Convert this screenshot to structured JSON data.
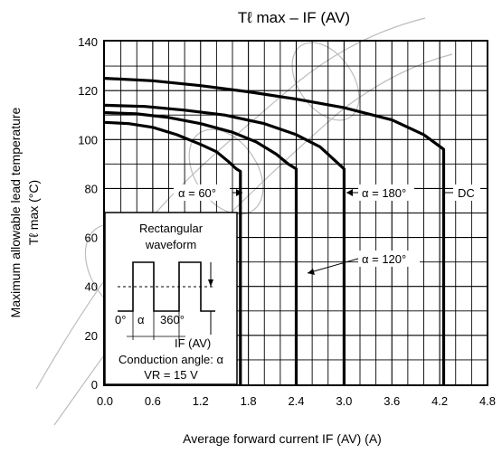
{
  "chart_data": {
    "type": "line",
    "title": "Tℓ max – IF (AV)",
    "xlabel": "Average forward current   IF (AV)   (A)",
    "ylabel_line1": "Maximum allowable lead temperature",
    "ylabel_line2": "Tℓ max    (°C)",
    "xlim": [
      0,
      4.8
    ],
    "ylim": [
      0,
      140
    ],
    "x_ticks": [
      "0.0",
      "0.6",
      "1.2",
      "1.8",
      "2.4",
      "3.0",
      "3.6",
      "4.2",
      "4.8"
    ],
    "y_ticks": [
      "0",
      "20",
      "40",
      "60",
      "80",
      "100",
      "120",
      "140"
    ],
    "grid": true,
    "series": [
      {
        "name": "α = 60°",
        "x": [
          0.0,
          0.3,
          0.6,
          0.9,
          1.2,
          1.4,
          1.55,
          1.65,
          1.7,
          1.7
        ],
        "y": [
          107,
          106.5,
          105,
          102,
          98,
          95,
          91,
          88,
          87,
          0
        ]
      },
      {
        "name": "α = 120°",
        "x": [
          0.0,
          0.4,
          0.8,
          1.2,
          1.6,
          1.9,
          2.15,
          2.3,
          2.4,
          2.4
        ],
        "y": [
          111,
          110.5,
          109,
          106.5,
          103,
          99,
          94,
          90,
          88,
          0
        ]
      },
      {
        "name": "α = 180°",
        "x": [
          0.0,
          0.5,
          1.0,
          1.5,
          2.0,
          2.4,
          2.7,
          2.9,
          3.0,
          3.0
        ],
        "y": [
          114,
          113.5,
          112,
          110,
          106.5,
          102,
          97,
          91,
          88,
          0
        ]
      },
      {
        "name": "DC",
        "x": [
          0.0,
          0.6,
          1.2,
          1.8,
          2.4,
          3.0,
          3.6,
          4.0,
          4.25,
          4.25
        ],
        "y": [
          125,
          124,
          122,
          119.5,
          116.5,
          113,
          108,
          102,
          96,
          0
        ]
      }
    ],
    "annotations": {
      "a60": "α = 60°",
      "a120": "α = 120°",
      "a180": "α = 180°",
      "dc": "DC"
    }
  },
  "inset": {
    "title_line1": "Rectangular",
    "title_line2": "waveform",
    "zero": "0°",
    "alpha": "α",
    "deg360": "360°",
    "iav": "IF (AV)",
    "conduction": "Conduction angle: α",
    "vr": "VR = 15 V"
  }
}
